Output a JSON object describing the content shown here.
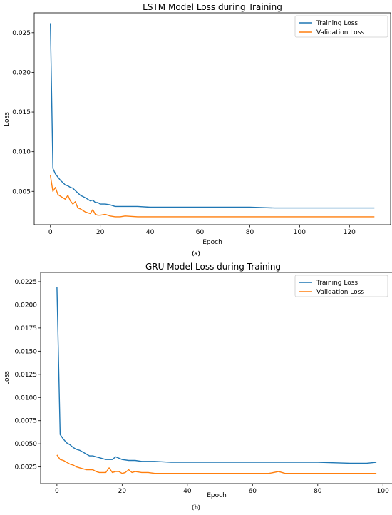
{
  "colors": {
    "training": "#1f77b4",
    "validation": "#ff7f0e"
  },
  "panels": [
    {
      "caption": "(a)",
      "title": "LSTM Model Loss during Training",
      "xlabel": "Epoch",
      "ylabel": "Loss",
      "legend_placement": "top-right",
      "xticks": [
        "0",
        "20",
        "40",
        "60",
        "80",
        "100",
        "120"
      ],
      "yticks": [
        "0.005",
        "0.010",
        "0.015",
        "0.020",
        "0.025"
      ]
    },
    {
      "caption": "(b)",
      "title": "GRU Model Loss during Training",
      "xlabel": "Epoch",
      "ylabel": "Loss",
      "legend_placement": "top-right",
      "xticks": [
        "0",
        "20",
        "40",
        "60",
        "80",
        "100"
      ],
      "yticks": [
        "0.0025",
        "0.0050",
        "0.0075",
        "0.0100",
        "0.0125",
        "0.0150",
        "0.0175",
        "0.0200",
        "0.0225"
      ]
    }
  ],
  "chart_data": [
    {
      "type": "line",
      "title": "LSTM Model Loss during Training",
      "xlabel": "Epoch",
      "ylabel": "Loss",
      "xlim": [
        -6.5,
        136.5
      ],
      "ylim": [
        0.0008,
        0.0275
      ],
      "xticks": [
        0,
        20,
        40,
        60,
        80,
        100,
        120
      ],
      "yticks": [
        0.005,
        0.01,
        0.015,
        0.02,
        0.025
      ],
      "grid": false,
      "legend": "top-right",
      "series": [
        {
          "name": "Training Loss",
          "x": [
            0,
            1,
            2,
            3,
            4,
            5,
            6,
            7,
            8,
            9,
            10,
            12,
            14,
            16,
            17,
            18,
            19,
            20,
            22,
            24,
            26,
            28,
            30,
            35,
            40,
            50,
            60,
            70,
            80,
            90,
            100,
            110,
            120,
            125,
            128,
            130
          ],
          "y": [
            0.0262,
            0.0079,
            0.0072,
            0.0068,
            0.0064,
            0.0061,
            0.0058,
            0.0057,
            0.0055,
            0.0054,
            0.0051,
            0.0045,
            0.0042,
            0.0038,
            0.0039,
            0.0036,
            0.0036,
            0.0034,
            0.0034,
            0.0033,
            0.0031,
            0.0031,
            0.0031,
            0.0031,
            0.003,
            0.003,
            0.003,
            0.003,
            0.003,
            0.0029,
            0.0029,
            0.0029,
            0.0029,
            0.0029,
            0.0029,
            0.0029
          ]
        },
        {
          "name": "Validation Loss",
          "x": [
            0,
            1,
            2,
            3,
            4,
            5,
            6,
            7,
            8,
            9,
            10,
            11,
            12,
            13,
            14,
            15,
            16,
            17,
            18,
            19,
            20,
            22,
            24,
            26,
            28,
            30,
            35,
            40,
            50,
            60,
            70,
            80,
            90,
            100,
            110,
            120,
            125,
            128,
            130
          ],
          "y": [
            0.007,
            0.005,
            0.0055,
            0.0046,
            0.0044,
            0.0042,
            0.004,
            0.0045,
            0.0038,
            0.0034,
            0.0037,
            0.0029,
            0.0028,
            0.0026,
            0.0024,
            0.0023,
            0.0022,
            0.0027,
            0.0021,
            0.002,
            0.002,
            0.0021,
            0.0019,
            0.0018,
            0.0018,
            0.0019,
            0.0018,
            0.0018,
            0.0018,
            0.0018,
            0.0018,
            0.0018,
            0.0018,
            0.0018,
            0.0018,
            0.0018,
            0.0018,
            0.0018,
            0.0018
          ]
        }
      ]
    },
    {
      "type": "line",
      "title": "GRU Model Loss during Training",
      "xlabel": "Epoch",
      "ylabel": "Loss",
      "xlim": [
        -5,
        103
      ],
      "ylim": [
        0.0007,
        0.0235
      ],
      "xticks": [
        0,
        20,
        40,
        60,
        80,
        100
      ],
      "yticks": [
        0.0025,
        0.005,
        0.0075,
        0.01,
        0.0125,
        0.015,
        0.0175,
        0.02,
        0.0225
      ],
      "grid": false,
      "legend": "top-right",
      "series": [
        {
          "name": "Training Loss",
          "x": [
            0,
            1,
            2,
            3,
            4,
            5,
            6,
            7,
            8,
            9,
            10,
            11,
            12,
            13,
            14,
            15,
            16,
            17,
            18,
            20,
            22,
            24,
            26,
            28,
            30,
            35,
            40,
            50,
            60,
            70,
            80,
            90,
            95,
            98
          ],
          "y": [
            0.0219,
            0.006,
            0.0055,
            0.0051,
            0.0049,
            0.0046,
            0.0044,
            0.0043,
            0.0041,
            0.0039,
            0.0037,
            0.0037,
            0.0036,
            0.0035,
            0.0034,
            0.0033,
            0.0033,
            0.0033,
            0.0036,
            0.0033,
            0.0032,
            0.0032,
            0.0031,
            0.0031,
            0.0031,
            0.003,
            0.003,
            0.003,
            0.003,
            0.003,
            0.003,
            0.0029,
            0.0029,
            0.003
          ]
        },
        {
          "name": "Validation Loss",
          "x": [
            0,
            1,
            2,
            3,
            4,
            5,
            6,
            7,
            8,
            9,
            10,
            11,
            12,
            13,
            14,
            15,
            16,
            17,
            18,
            19,
            20,
            21,
            22,
            23,
            24,
            26,
            28,
            30,
            35,
            40,
            50,
            60,
            65,
            68,
            70,
            80,
            90,
            95,
            98
          ],
          "y": [
            0.0038,
            0.0033,
            0.0032,
            0.003,
            0.0028,
            0.0027,
            0.0025,
            0.0024,
            0.0023,
            0.0022,
            0.0022,
            0.0022,
            0.002,
            0.0019,
            0.0019,
            0.0019,
            0.0024,
            0.0019,
            0.002,
            0.002,
            0.0018,
            0.0019,
            0.0022,
            0.0019,
            0.002,
            0.0019,
            0.0019,
            0.0018,
            0.0018,
            0.0018,
            0.0018,
            0.0018,
            0.0018,
            0.002,
            0.0018,
            0.0018,
            0.0018,
            0.0018,
            0.0018
          ]
        }
      ]
    }
  ]
}
